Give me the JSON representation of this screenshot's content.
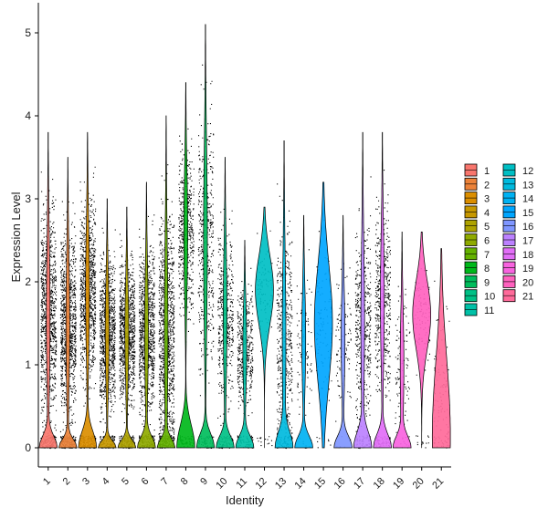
{
  "chart_data": {
    "type": "violin",
    "title": "",
    "xlabel": "Identity",
    "ylabel": "Expression Level",
    "ylim": [
      -0.25,
      5.15
    ],
    "yticks": [
      0,
      1,
      2,
      3,
      4,
      5
    ],
    "grid": false,
    "legend_position": "right",
    "legend_columns": 2,
    "categories": [
      "1",
      "2",
      "3",
      "4",
      "5",
      "6",
      "7",
      "8",
      "9",
      "10",
      "11",
      "12",
      "13",
      "14",
      "15",
      "16",
      "17",
      "18",
      "19",
      "20",
      "21"
    ],
    "colors": [
      "#F8766D",
      "#EC8239",
      "#DB8E00",
      "#C79800",
      "#AEA200",
      "#8FAA00",
      "#64B200",
      "#00B81B",
      "#00BD5C",
      "#00C085",
      "#00C1A7",
      "#00BFC4",
      "#00BADE",
      "#00B2F3",
      "#00A6FF",
      "#7F96FF",
      "#BC81FF",
      "#E26EF7",
      "#F863DF",
      "#FF62BF",
      "#FF6A9A"
    ],
    "series": [
      {
        "name": "1",
        "zero_violin_height": 0.3,
        "dist_center": 1.6,
        "dist_top": 3.8,
        "density": "high"
      },
      {
        "name": "2",
        "zero_violin_height": 0.22,
        "dist_center": 1.5,
        "dist_top": 3.5,
        "density": "high"
      },
      {
        "name": "3",
        "zero_violin_height": 0.42,
        "dist_center": 1.9,
        "dist_top": 3.8,
        "density": "high"
      },
      {
        "name": "4",
        "zero_violin_height": 0.18,
        "dist_center": 1.4,
        "dist_top": 3.0,
        "density": "high"
      },
      {
        "name": "5",
        "zero_violin_height": 0.2,
        "dist_center": 1.4,
        "dist_top": 2.9,
        "density": "high"
      },
      {
        "name": "6",
        "zero_violin_height": 0.28,
        "dist_center": 1.4,
        "dist_top": 3.2,
        "density": "high"
      },
      {
        "name": "7",
        "zero_violin_height": 0.22,
        "dist_center": 1.4,
        "dist_top": 4.0,
        "density": "high"
      },
      {
        "name": "8",
        "zero_violin_height": 0.6,
        "dist_center": 2.6,
        "dist_top": 4.4,
        "density": "medium"
      },
      {
        "name": "9",
        "zero_violin_height": 0.35,
        "dist_center": 2.5,
        "dist_top": 5.1,
        "density": "medium"
      },
      {
        "name": "10",
        "zero_violin_height": 0.3,
        "dist_center": 1.6,
        "dist_top": 3.5,
        "density": "medium"
      },
      {
        "name": "11",
        "zero_violin_height": 0.3,
        "dist_center": 1.2,
        "dist_top": 2.5,
        "density": "medium"
      },
      {
        "name": "12",
        "zero_violin_height": 0,
        "dist_center": 1.9,
        "dist_top": 2.9,
        "density": "low"
      },
      {
        "name": "13",
        "zero_violin_height": 0.4,
        "dist_center": 1.3,
        "dist_top": 3.7,
        "density": "medium"
      },
      {
        "name": "14",
        "zero_violin_height": 0.3,
        "dist_center": 1.3,
        "dist_top": 2.8,
        "density": "low"
      },
      {
        "name": "15",
        "zero_violin_height": 0,
        "dist_center": 1.5,
        "dist_top": 3.2,
        "density": "low"
      },
      {
        "name": "16",
        "zero_violin_height": 0.3,
        "dist_center": 1.3,
        "dist_top": 2.8,
        "density": "low"
      },
      {
        "name": "17",
        "zero_violin_height": 0.4,
        "dist_center": 1.5,
        "dist_top": 3.8,
        "density": "medium"
      },
      {
        "name": "18",
        "zero_violin_height": 0.35,
        "dist_center": 1.8,
        "dist_top": 3.8,
        "density": "medium"
      },
      {
        "name": "19",
        "zero_violin_height": 0.3,
        "dist_center": 1.0,
        "dist_top": 2.6,
        "density": "low"
      },
      {
        "name": "20",
        "zero_violin_height": 0,
        "dist_center": 1.6,
        "dist_top": 2.6,
        "density": "low"
      },
      {
        "name": "21",
        "zero_violin_height": 2.05,
        "dist_center": 0.6,
        "dist_top": 2.4,
        "density": "low"
      }
    ]
  }
}
